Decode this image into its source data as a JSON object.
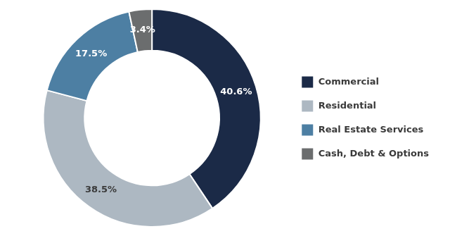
{
  "chart_data": {
    "type": "doughnut",
    "categories": [
      "Commercial",
      "Residential",
      "Real Estate Services",
      "Cash, Debt & Options"
    ],
    "values": [
      40.6,
      38.5,
      17.5,
      3.4
    ],
    "value_labels": [
      "40.6%",
      "38.5%",
      "17.5%",
      "3.4%"
    ],
    "colors": [
      "#1b2a47",
      "#adb8c2",
      "#4d7fa3",
      "#6b6d6e"
    ],
    "data_labels": true,
    "legend": "right"
  }
}
